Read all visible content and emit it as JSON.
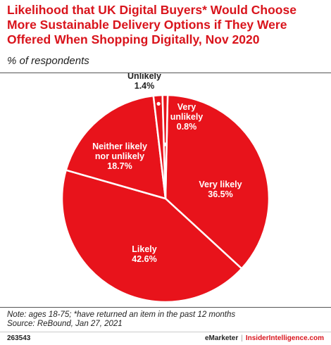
{
  "chart_data": {
    "type": "pie",
    "title": "Likelihood that UK Digital Buyers* Would Choose More Sustainable Delivery Options if They Were Offered When Shopping Digitally, Nov 2020",
    "subtitle": "% of respondents",
    "slices": [
      {
        "label": "Very likely",
        "value": 36.5,
        "display": "36.5%"
      },
      {
        "label": "Likely",
        "value": 42.6,
        "display": "42.6%"
      },
      {
        "label": "Neither likely nor unlikely",
        "value": 18.7,
        "display": "18.7%"
      },
      {
        "label": "Unlikely",
        "value": 1.4,
        "display": "1.4%"
      },
      {
        "label": "Very unlikely",
        "value": 0.8,
        "display": "0.8%"
      }
    ],
    "colors": {
      "slice": "#e8131b",
      "border": "#ffffff",
      "title": "#d9141c"
    }
  },
  "footer": {
    "note": "Note: ages 18-75; *have returned an item in the past 12 months",
    "source": "Source: ReBound, Jan 27, 2021",
    "chart_id": "263543",
    "brand_left": "eMarketer",
    "separator": "|",
    "brand_right": "InsiderIntelligence.com"
  }
}
